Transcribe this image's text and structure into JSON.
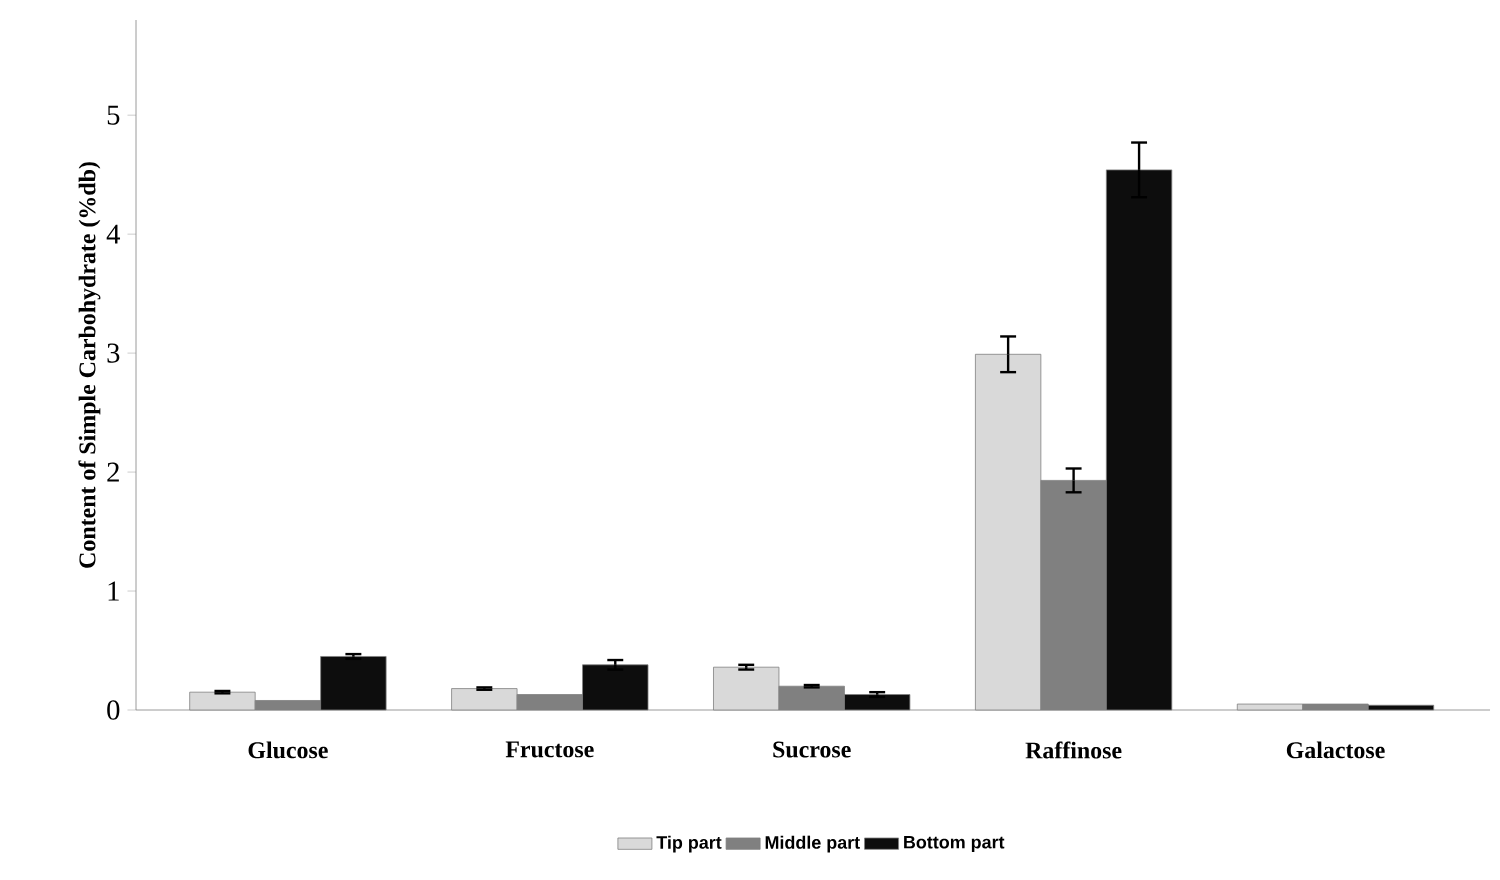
{
  "chart_data": {
    "type": "bar",
    "ylabel": "Content of Simple Carbohydrate (%db)",
    "categories": [
      "Glucose",
      "Fructose",
      "Sucrose",
      "Raffinose",
      "Galactose"
    ],
    "series": [
      {
        "name": "Tip part",
        "color": "#d9d9d9",
        "values": [
          0.15,
          0.18,
          0.36,
          2.99,
          0.05
        ],
        "errors": [
          0.01,
          0.01,
          0.02,
          0.15,
          null
        ]
      },
      {
        "name": "Middle part",
        "color": "#808080",
        "values": [
          0.08,
          0.13,
          0.2,
          1.93,
          0.05
        ],
        "errors": [
          null,
          null,
          0.01,
          0.1,
          null
        ]
      },
      {
        "name": "Bottom part",
        "color": "#0d0d0d",
        "values": [
          0.45,
          0.38,
          0.13,
          4.54,
          0.04
        ],
        "errors": [
          0.02,
          0.04,
          0.02,
          0.23,
          null
        ]
      }
    ],
    "ylim": [
      0,
      5.8
    ],
    "yticks": [
      0,
      1,
      2,
      3,
      4,
      5
    ],
    "grid": false,
    "legend": "bottom"
  }
}
